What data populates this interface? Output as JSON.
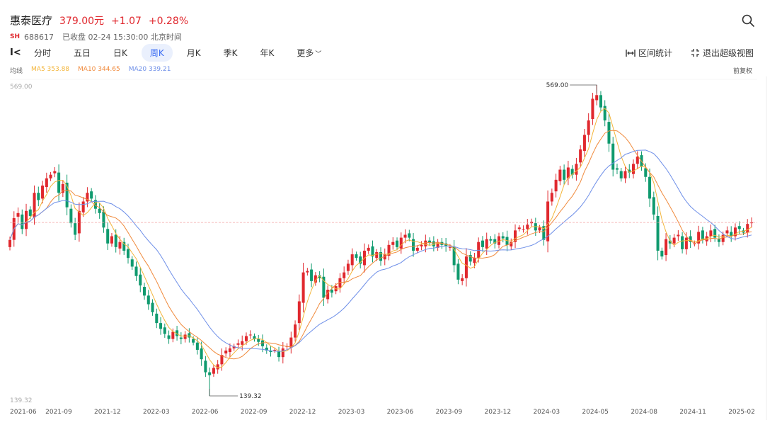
{
  "header": {
    "stock_name": "惠泰医疗",
    "price": "379.00元",
    "change": "+1.07",
    "change_pct": "+0.28%",
    "market": "SH",
    "code": "688617",
    "status": "已收盘 02-24 15:30:00 北京时间"
  },
  "toolbar": {
    "tabs": [
      {
        "label": "分时"
      },
      {
        "label": "五日"
      },
      {
        "label": "日K"
      },
      {
        "label": "周K"
      },
      {
        "label": "月K"
      },
      {
        "label": "季K"
      },
      {
        "label": "年K"
      },
      {
        "label": "更多"
      }
    ],
    "active_tab": "周K",
    "interval_stats": "区间统计",
    "exit_view": "退出超级视图"
  },
  "legend": {
    "label": "均线",
    "ma5": "MA5 353.88",
    "ma10": "MA10 344.65",
    "ma20": "MA20 339.21",
    "adjust": "前复权"
  },
  "colors": {
    "up": "#e0282e",
    "down": "#0f9a6e",
    "ma5": "#f3b53a",
    "ma10": "#f08a3c",
    "ma20": "#6e8fe8",
    "accent": "#3a6cf4"
  },
  "chart_data": {
    "type": "candlestick",
    "y_top_label": "569.00",
    "y_bottom_label": "139.32",
    "ylim": [
      139.32,
      569.0
    ],
    "last_close": 379.0,
    "max_annotation": "569.00",
    "min_annotation": "139.32",
    "x_tick_labels": [
      "2021-06",
      "2021-09",
      "2021-12",
      "2022-03",
      "2022-06",
      "2022-09",
      "2022-12",
      "2023-03",
      "2023-06",
      "2023-09",
      "2023-12",
      "2024-03",
      "2024-05",
      "2024-08",
      "2024-11",
      "2025-02"
    ],
    "closes": [
      355,
      385,
      392,
      370,
      395,
      388,
      420,
      410,
      430,
      440,
      445,
      450,
      420,
      432,
      400,
      378,
      362,
      395,
      408,
      420,
      412,
      398,
      392,
      372,
      350,
      360,
      345,
      352,
      340,
      330,
      318,
      305,
      292,
      278,
      266,
      255,
      240,
      232,
      225,
      218,
      228,
      222,
      218,
      224,
      220,
      213,
      203,
      190,
      172,
      168,
      178,
      183,
      196,
      202,
      205,
      208,
      212,
      215,
      222,
      224,
      218,
      214,
      208,
      202,
      200,
      203,
      193,
      205,
      208,
      220,
      238,
      270,
      310,
      312,
      298,
      306,
      302,
      275,
      286,
      282,
      291,
      302,
      310,
      322,
      335,
      330,
      322,
      340,
      344,
      332,
      338,
      326,
      335,
      348,
      352,
      345,
      358,
      362,
      358,
      340,
      344,
      348,
      354,
      351,
      346,
      352,
      348,
      346,
      345,
      320,
      300,
      302,
      332,
      325,
      330,
      352,
      345,
      356,
      354,
      350,
      360,
      357,
      348,
      352,
      368,
      372,
      370,
      376,
      380,
      368,
      372,
      355,
      408,
      420,
      438,
      452,
      438,
      455,
      445,
      460,
      480,
      500,
      520,
      550,
      555,
      538,
      520,
      488,
      452,
      452,
      440,
      450,
      448,
      460,
      470,
      456,
      442,
      412,
      390,
      340,
      332,
      356,
      350,
      358,
      362,
      342,
      358,
      352,
      350,
      366,
      355,
      360,
      368,
      358,
      352,
      362,
      368,
      360,
      372,
      370,
      365,
      377,
      379
    ]
  }
}
